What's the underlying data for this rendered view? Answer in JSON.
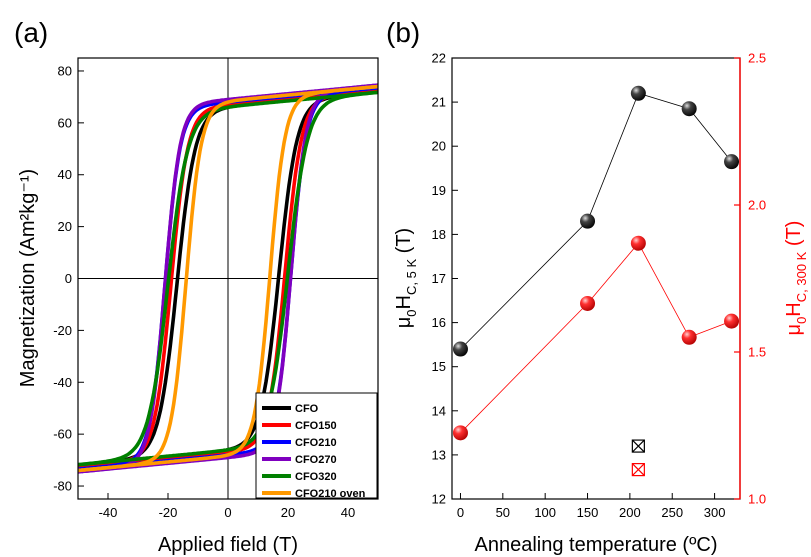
{
  "colors": {
    "black": "#000000",
    "red": "#ff0000",
    "blue": "#0000ff",
    "purple": "#7f00bf",
    "green": "#008000",
    "orange": "#ff9900"
  },
  "chart_data": [
    {
      "panel_label": "(a)",
      "type": "line",
      "xlabel": "Applied field (T)",
      "ylabel": "Magnetization (Am²kg⁻¹)",
      "xlim": [
        -50,
        50
      ],
      "ylim": [
        -85,
        85
      ],
      "xticks": [
        -40,
        -20,
        0,
        20,
        40
      ],
      "yticks": [
        -80,
        -60,
        -40,
        -20,
        0,
        20,
        40,
        60,
        80
      ],
      "legend_position": "bottom-right",
      "series": [
        {
          "name": "CFO",
          "color": "#000000",
          "Hc": 17,
          "Ms": 82,
          "Mr": 66,
          "w": 6.0
        },
        {
          "name": "CFO150",
          "color": "#ff0000",
          "Hc": 19,
          "Ms": 82,
          "Mr": 67,
          "w": 5.5
        },
        {
          "name": "CFO210",
          "color": "#0000ff",
          "Hc": 21,
          "Ms": 81,
          "Mr": 68,
          "w": 5.0
        },
        {
          "name": "CFO270",
          "color": "#7f00bf",
          "Hc": 21,
          "Ms": 82,
          "Mr": 69,
          "w": 5.0
        },
        {
          "name": "CFO320",
          "color": "#008000",
          "Hc": 20,
          "Ms": 79,
          "Mr": 66,
          "w": 6.5
        },
        {
          "name": "CFO210 oven",
          "color": "#ff9900",
          "Hc": 14,
          "Ms": 84,
          "Mr": 68,
          "w": 5.0
        }
      ]
    },
    {
      "panel_label": "(b)",
      "type": "scatter",
      "xlabel": "Annealing temperature (ºC)",
      "ylabel_left": "μ0HC, 5 K (T)",
      "ylabel_right": "μ0HC, 300 K (T)",
      "xlim": [
        -10,
        330
      ],
      "ylim_left": [
        12,
        22
      ],
      "ylim_right": [
        1.0,
        2.5
      ],
      "xticks": [
        0,
        50,
        100,
        150,
        200,
        250,
        300
      ],
      "yticks_left": [
        12,
        13,
        14,
        15,
        16,
        17,
        18,
        19,
        20,
        21,
        22
      ],
      "yticks_right": [
        1.0,
        1.5,
        2.0,
        2.5
      ],
      "series": [
        {
          "name": "μ0HC, 5 K",
          "axis": "left",
          "color": "#000000",
          "x": [
            0,
            150,
            210,
            270,
            320
          ],
          "y": [
            15.4,
            18.3,
            21.2,
            20.85,
            19.65
          ]
        },
        {
          "name": "μ0HC, 300 K",
          "axis": "right",
          "color": "#ff0000",
          "x": [
            0,
            150,
            210,
            270,
            320
          ],
          "y": [
            1.225,
            1.665,
            1.87,
            1.55,
            1.605
          ]
        }
      ],
      "open_markers": [
        {
          "axis": "left",
          "color": "#000000",
          "x": 210,
          "y": 13.2
        },
        {
          "axis": "right",
          "color": "#ff0000",
          "x": 210,
          "y": 1.1
        }
      ]
    }
  ]
}
